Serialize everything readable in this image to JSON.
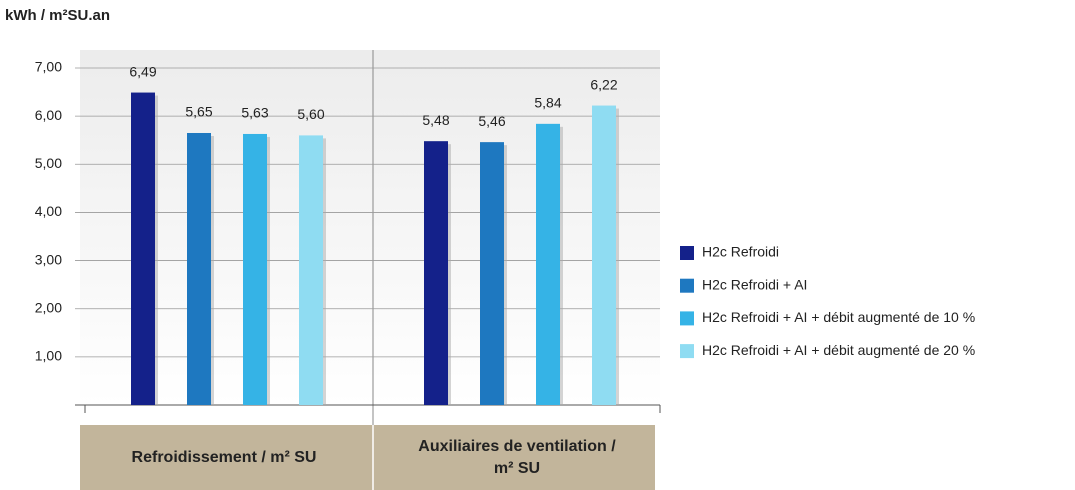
{
  "chart_data": {
    "type": "bar",
    "y_label": "kWh / m²SU.an",
    "categories": [
      "Refroidissement / m² SU",
      "Auxiliaires de ventilation / m² SU"
    ],
    "series": [
      {
        "name": "H2c Refroidi",
        "color": "#14218a",
        "values": [
          6.49,
          5.48
        ],
        "value_labels": [
          "6,49",
          "5,48"
        ]
      },
      {
        "name": "H2c Refroidi + AI",
        "color": "#1e78c0",
        "values": [
          5.65,
          5.46
        ],
        "value_labels": [
          "5,65",
          "5,46"
        ]
      },
      {
        "name": "H2c Refroidi + AI + débit augmenté de 10 %",
        "color": "#35b3e6",
        "values": [
          5.63,
          5.84
        ],
        "value_labels": [
          "5,63",
          "5,84"
        ]
      },
      {
        "name": "H2c Refroidi + AI + débit augmenté de 20 %",
        "color": "#8fdcf2",
        "values": [
          5.6,
          6.22
        ],
        "value_labels": [
          "5,60",
          "6,22"
        ]
      }
    ],
    "ylim": [
      0,
      7
    ],
    "yticks": [
      {
        "value": 1,
        "label": "1,00"
      },
      {
        "value": 2,
        "label": "2,00"
      },
      {
        "value": 3,
        "label": "3,00"
      },
      {
        "value": 4,
        "label": "4,00"
      },
      {
        "value": 5,
        "label": "5,00"
      },
      {
        "value": 6,
        "label": "6,00"
      },
      {
        "value": 7,
        "label": "7,00"
      }
    ],
    "grid": true
  }
}
